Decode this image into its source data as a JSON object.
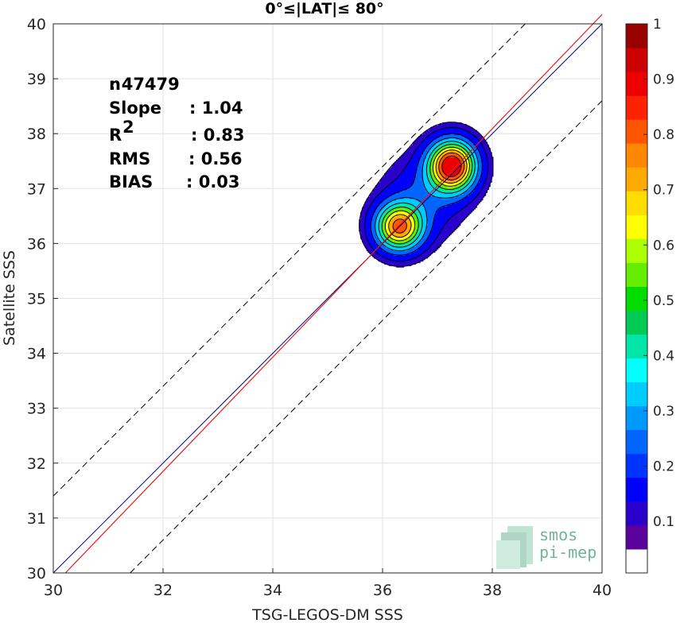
{
  "chart_data": {
    "type": "density-scatter",
    "title": "0°≤|LAT|≤ 80°",
    "xlabel": "TSG-LEGOS-DM SSS",
    "ylabel": "Satellite SSS",
    "xlim": [
      30,
      40
    ],
    "ylim": [
      30,
      40
    ],
    "xticks": [
      "30",
      "32",
      "34",
      "36",
      "38",
      "40"
    ],
    "yticks": [
      "30",
      "31",
      "32",
      "33",
      "34",
      "35",
      "36",
      "37",
      "38",
      "39",
      "40"
    ],
    "grid": true,
    "stats": [
      {
        "label": "n",
        "value": ": 47479"
      },
      {
        "label": "Slope",
        "value": ": 1.04"
      },
      {
        "label": "R",
        "sup": "2",
        "value": ": 0.83"
      },
      {
        "label": "RMS",
        "value": ": 0.56"
      },
      {
        "label": "BIAS",
        "value": ": 0.03"
      }
    ],
    "lines": {
      "identity": {
        "slope": 1,
        "intercept": 0,
        "color": "#000080"
      },
      "fit": {
        "slope": 1.04,
        "intercept": -1.43,
        "color": "#e41a1c"
      },
      "bounds_offset": 1.4
    },
    "density_peaks": [
      {
        "x": 36.3,
        "y": 36.3,
        "sx": 0.3,
        "sy": 0.3,
        "amp": 0.8
      },
      {
        "x": 37.27,
        "y": 37.42,
        "sx": 0.3,
        "sy": 0.32,
        "amp": 1.0
      },
      {
        "x": 36.75,
        "y": 36.85,
        "sx": 0.5,
        "sy": 0.5,
        "amp": 0.18
      }
    ],
    "contour_levels": [
      0.05,
      0.1,
      0.2,
      0.3,
      0.4,
      0.5,
      0.6,
      0.7,
      0.8,
      0.9
    ],
    "colorbar": {
      "min": 0,
      "max": 1,
      "ticks": [
        "0.1",
        "0.2",
        "0.3",
        "0.4",
        "0.5",
        "0.6",
        "0.7",
        "0.8",
        "0.9",
        "1"
      ],
      "colors": [
        "#ffffff",
        "#5b019c",
        "#2a00cc",
        "#0000ff",
        "#0033ff",
        "#0066ff",
        "#0099ff",
        "#00ccff",
        "#00ffff",
        "#00e6a8",
        "#00cc55",
        "#00dd00",
        "#66ee00",
        "#aaff00",
        "#ffff00",
        "#ffdd00",
        "#ffaa00",
        "#ff8800",
        "#ff5500",
        "#ff2200",
        "#ee0000",
        "#cc0000",
        "#990000"
      ]
    },
    "watermark": {
      "line1": "smos",
      "line2": "pi-mep"
    }
  }
}
